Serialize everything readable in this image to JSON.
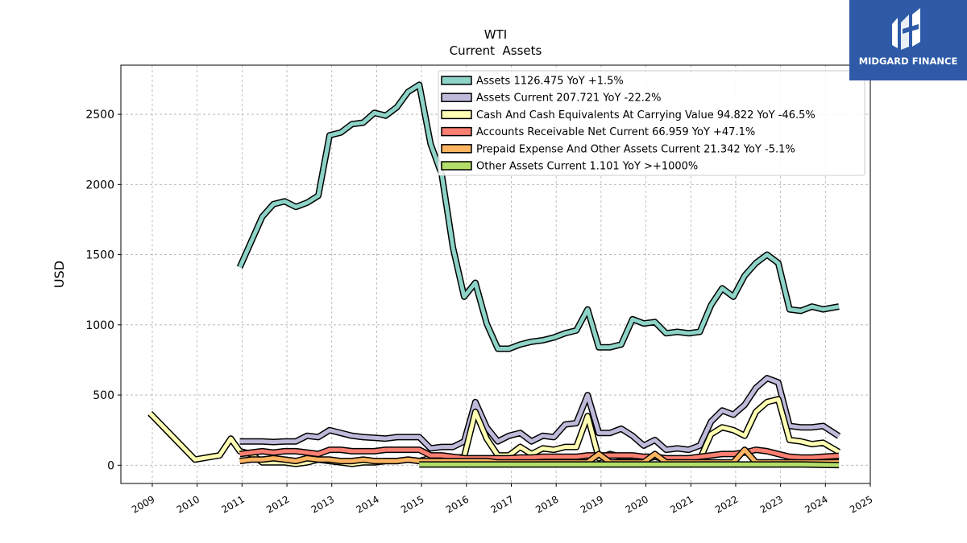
{
  "brand": {
    "name": "MIDGARD FINANCE",
    "bg": "#2e5aa8"
  },
  "chart_data": {
    "type": "line",
    "title": "WTI",
    "subtitle": "Current  Assets",
    "xlabel": "",
    "ylabel": "USD",
    "xlim": [
      2008.3,
      2025.0
    ],
    "ylim": [
      -130,
      2850
    ],
    "x_ticks": [
      "2009",
      "2010",
      "2011",
      "2012",
      "2013",
      "2014",
      "2015",
      "2016",
      "2017",
      "2018",
      "2019",
      "2020",
      "2021",
      "2022",
      "2023",
      "2024",
      "2025"
    ],
    "y_ticks": [
      0,
      500,
      1000,
      1500,
      2000,
      2500
    ],
    "grid": true,
    "legend_position": "top-right",
    "series": [
      {
        "name": "Assets",
        "legend": "Assets  1126.475 YoY +1.5%",
        "color": "#8dd3c7",
        "points": [
          [
            2010.95,
            1410
          ],
          [
            2011.2,
            1590
          ],
          [
            2011.45,
            1770
          ],
          [
            2011.7,
            1860
          ],
          [
            2011.95,
            1880
          ],
          [
            2012.2,
            1840
          ],
          [
            2012.45,
            1870
          ],
          [
            2012.7,
            1920
          ],
          [
            2012.95,
            2350
          ],
          [
            2013.2,
            2370
          ],
          [
            2013.45,
            2430
          ],
          [
            2013.7,
            2440
          ],
          [
            2013.95,
            2510
          ],
          [
            2014.2,
            2490
          ],
          [
            2014.45,
            2550
          ],
          [
            2014.7,
            2660
          ],
          [
            2014.95,
            2710
          ],
          [
            2015.2,
            2290
          ],
          [
            2015.45,
            2070
          ],
          [
            2015.7,
            1550
          ],
          [
            2015.95,
            1200
          ],
          [
            2016.2,
            1300
          ],
          [
            2016.45,
            1010
          ],
          [
            2016.7,
            830
          ],
          [
            2016.95,
            830
          ],
          [
            2017.2,
            860
          ],
          [
            2017.45,
            880
          ],
          [
            2017.7,
            890
          ],
          [
            2017.95,
            910
          ],
          [
            2018.2,
            940
          ],
          [
            2018.45,
            960
          ],
          [
            2018.7,
            1110
          ],
          [
            2018.95,
            840
          ],
          [
            2019.2,
            840
          ],
          [
            2019.45,
            860
          ],
          [
            2019.7,
            1040
          ],
          [
            2019.95,
            1010
          ],
          [
            2020.2,
            1020
          ],
          [
            2020.45,
            940
          ],
          [
            2020.7,
            950
          ],
          [
            2020.95,
            940
          ],
          [
            2021.2,
            950
          ],
          [
            2021.45,
            1140
          ],
          [
            2021.7,
            1260
          ],
          [
            2021.95,
            1200
          ],
          [
            2022.2,
            1350
          ],
          [
            2022.45,
            1440
          ],
          [
            2022.7,
            1500
          ],
          [
            2022.95,
            1440
          ],
          [
            2023.2,
            1110
          ],
          [
            2023.45,
            1100
          ],
          [
            2023.7,
            1130
          ],
          [
            2023.95,
            1110
          ],
          [
            2024.3,
            1130
          ]
        ]
      },
      {
        "name": "Assets Current",
        "legend": "Assets Current  207.721 YoY -22.2%",
        "color": "#bebada",
        "points": [
          [
            2010.95,
            170
          ],
          [
            2011.2,
            170
          ],
          [
            2011.45,
            170
          ],
          [
            2011.7,
            165
          ],
          [
            2011.95,
            170
          ],
          [
            2012.2,
            170
          ],
          [
            2012.45,
            210
          ],
          [
            2012.7,
            200
          ],
          [
            2012.95,
            250
          ],
          [
            2013.2,
            230
          ],
          [
            2013.45,
            210
          ],
          [
            2013.7,
            200
          ],
          [
            2013.95,
            195
          ],
          [
            2014.2,
            190
          ],
          [
            2014.45,
            200
          ],
          [
            2014.7,
            200
          ],
          [
            2014.95,
            200
          ],
          [
            2015.2,
            120
          ],
          [
            2015.45,
            130
          ],
          [
            2015.7,
            130
          ],
          [
            2015.95,
            170
          ],
          [
            2016.2,
            450
          ],
          [
            2016.45,
            270
          ],
          [
            2016.7,
            170
          ],
          [
            2016.95,
            210
          ],
          [
            2017.2,
            230
          ],
          [
            2017.45,
            170
          ],
          [
            2017.7,
            210
          ],
          [
            2017.95,
            200
          ],
          [
            2018.2,
            290
          ],
          [
            2018.45,
            300
          ],
          [
            2018.7,
            500
          ],
          [
            2018.95,
            230
          ],
          [
            2019.2,
            230
          ],
          [
            2019.45,
            260
          ],
          [
            2019.7,
            210
          ],
          [
            2019.95,
            140
          ],
          [
            2020.2,
            180
          ],
          [
            2020.45,
            110
          ],
          [
            2020.7,
            120
          ],
          [
            2020.95,
            110
          ],
          [
            2021.2,
            140
          ],
          [
            2021.45,
            310
          ],
          [
            2021.7,
            390
          ],
          [
            2021.95,
            360
          ],
          [
            2022.2,
            430
          ],
          [
            2022.45,
            550
          ],
          [
            2022.7,
            620
          ],
          [
            2022.95,
            590
          ],
          [
            2023.2,
            280
          ],
          [
            2023.45,
            270
          ],
          [
            2023.7,
            270
          ],
          [
            2023.95,
            280
          ],
          [
            2024.3,
            207.721
          ]
        ]
      },
      {
        "name": "Cash And Cash Equivalents At Carrying Value",
        "legend": "Cash And Cash Equivalents At Carrying Value  94.822 YoY -46.5%",
        "color": "#ffffb3",
        "points": [
          [
            2008.95,
            370
          ],
          [
            2009.95,
            40
          ],
          [
            2010.5,
            70
          ],
          [
            2010.75,
            190
          ],
          [
            2010.95,
            100
          ],
          [
            2011.2,
            80
          ],
          [
            2011.45,
            20
          ],
          [
            2011.7,
            20
          ],
          [
            2011.95,
            20
          ],
          [
            2012.2,
            10
          ],
          [
            2012.45,
            20
          ],
          [
            2012.7,
            40
          ],
          [
            2012.95,
            30
          ],
          [
            2013.2,
            20
          ],
          [
            2013.45,
            10
          ],
          [
            2013.7,
            20
          ],
          [
            2013.95,
            20
          ],
          [
            2014.2,
            30
          ],
          [
            2014.45,
            30
          ],
          [
            2014.7,
            40
          ],
          [
            2014.95,
            30
          ],
          [
            2015.2,
            50
          ],
          [
            2015.45,
            50
          ],
          [
            2015.7,
            50
          ],
          [
            2015.95,
            60
          ],
          [
            2016.2,
            380
          ],
          [
            2016.45,
            190
          ],
          [
            2016.7,
            70
          ],
          [
            2016.95,
            70
          ],
          [
            2017.2,
            130
          ],
          [
            2017.45,
            80
          ],
          [
            2017.7,
            120
          ],
          [
            2017.95,
            110
          ],
          [
            2018.2,
            130
          ],
          [
            2018.45,
            130
          ],
          [
            2018.7,
            350
          ],
          [
            2018.95,
            50
          ],
          [
            2019.2,
            80
          ],
          [
            2019.45,
            60
          ],
          [
            2019.7,
            60
          ],
          [
            2019.95,
            40
          ],
          [
            2020.2,
            60
          ],
          [
            2020.45,
            40
          ],
          [
            2020.7,
            30
          ],
          [
            2020.95,
            40
          ],
          [
            2021.2,
            40
          ],
          [
            2021.45,
            220
          ],
          [
            2021.7,
            270
          ],
          [
            2021.95,
            250
          ],
          [
            2022.2,
            210
          ],
          [
            2022.45,
            380
          ],
          [
            2022.7,
            450
          ],
          [
            2022.95,
            470
          ],
          [
            2023.2,
            180
          ],
          [
            2023.45,
            170
          ],
          [
            2023.7,
            150
          ],
          [
            2023.95,
            160
          ],
          [
            2024.3,
            94.822
          ]
        ]
      },
      {
        "name": "Accounts Receivable Net Current",
        "legend": "Accounts Receivable Net Current  66.959 YoY +47.1%",
        "color": "#fb8072",
        "points": [
          [
            2010.95,
            80
          ],
          [
            2011.2,
            90
          ],
          [
            2011.45,
            100
          ],
          [
            2011.7,
            90
          ],
          [
            2011.95,
            100
          ],
          [
            2012.2,
            100
          ],
          [
            2012.45,
            90
          ],
          [
            2012.7,
            80
          ],
          [
            2012.95,
            110
          ],
          [
            2013.2,
            110
          ],
          [
            2013.45,
            100
          ],
          [
            2013.7,
            100
          ],
          [
            2013.95,
            100
          ],
          [
            2014.2,
            110
          ],
          [
            2014.45,
            110
          ],
          [
            2014.7,
            110
          ],
          [
            2014.95,
            110
          ],
          [
            2015.2,
            70
          ],
          [
            2015.45,
            70
          ],
          [
            2015.7,
            60
          ],
          [
            2015.95,
            50
          ],
          [
            2016.2,
            50
          ],
          [
            2016.45,
            50
          ],
          [
            2016.7,
            50
          ],
          [
            2016.95,
            50
          ],
          [
            2017.2,
            55
          ],
          [
            2017.45,
            55
          ],
          [
            2017.7,
            60
          ],
          [
            2017.95,
            60
          ],
          [
            2018.2,
            60
          ],
          [
            2018.45,
            60
          ],
          [
            2018.7,
            70
          ],
          [
            2018.95,
            70
          ],
          [
            2019.2,
            70
          ],
          [
            2019.45,
            70
          ],
          [
            2019.7,
            70
          ],
          [
            2019.95,
            60
          ],
          [
            2020.2,
            60
          ],
          [
            2020.45,
            50
          ],
          [
            2020.7,
            50
          ],
          [
            2020.95,
            50
          ],
          [
            2021.2,
            60
          ],
          [
            2021.45,
            70
          ],
          [
            2021.7,
            80
          ],
          [
            2021.95,
            80
          ],
          [
            2022.2,
            90
          ],
          [
            2022.45,
            110
          ],
          [
            2022.7,
            100
          ],
          [
            2022.95,
            80
          ],
          [
            2023.2,
            60
          ],
          [
            2023.45,
            55
          ],
          [
            2023.7,
            55
          ],
          [
            2023.95,
            60
          ],
          [
            2024.3,
            66.959
          ]
        ]
      },
      {
        "name": "Prepaid Expense And Other Assets Current",
        "legend": "Prepaid Expense And Other Assets Current  21.342 YoY -5.1%",
        "color": "#fdb462",
        "points": [
          [
            2010.95,
            30
          ],
          [
            2011.2,
            40
          ],
          [
            2011.45,
            40
          ],
          [
            2011.7,
            50
          ],
          [
            2011.95,
            40
          ],
          [
            2012.2,
            30
          ],
          [
            2012.45,
            50
          ],
          [
            2012.7,
            40
          ],
          [
            2012.95,
            40
          ],
          [
            2013.2,
            30
          ],
          [
            2013.45,
            30
          ],
          [
            2013.7,
            40
          ],
          [
            2013.95,
            30
          ],
          [
            2014.2,
            30
          ],
          [
            2014.45,
            30
          ],
          [
            2014.7,
            40
          ],
          [
            2014.95,
            30
          ],
          [
            2015.2,
            30
          ],
          [
            2015.45,
            30
          ],
          [
            2015.7,
            30
          ],
          [
            2015.95,
            30
          ],
          [
            2016.2,
            30
          ],
          [
            2016.45,
            30
          ],
          [
            2016.7,
            20
          ],
          [
            2016.95,
            20
          ],
          [
            2017.2,
            20
          ],
          [
            2017.45,
            20
          ],
          [
            2017.7,
            20
          ],
          [
            2017.95,
            20
          ],
          [
            2018.2,
            20
          ],
          [
            2018.45,
            20
          ],
          [
            2018.7,
            20
          ],
          [
            2018.95,
            80
          ],
          [
            2019.2,
            20
          ],
          [
            2019.45,
            20
          ],
          [
            2019.7,
            20
          ],
          [
            2019.95,
            20
          ],
          [
            2020.2,
            80
          ],
          [
            2020.45,
            20
          ],
          [
            2020.7,
            20
          ],
          [
            2020.95,
            20
          ],
          [
            2021.2,
            20
          ],
          [
            2021.45,
            20
          ],
          [
            2021.7,
            20
          ],
          [
            2021.95,
            20
          ],
          [
            2022.2,
            110
          ],
          [
            2022.45,
            20
          ],
          [
            2022.7,
            20
          ],
          [
            2022.95,
            20
          ],
          [
            2023.2,
            20
          ],
          [
            2023.45,
            20
          ],
          [
            2023.7,
            20
          ],
          [
            2023.95,
            20
          ],
          [
            2024.3,
            21.342
          ]
        ]
      },
      {
        "name": "Other Assets Current",
        "legend": "Other Assets Current  1.101 YoY >+1000%",
        "color": "#b3de69",
        "points": [
          [
            2014.95,
            5
          ],
          [
            2015.5,
            5
          ],
          [
            2016.0,
            5
          ],
          [
            2016.5,
            5
          ],
          [
            2017.0,
            5
          ],
          [
            2017.5,
            5
          ],
          [
            2018.0,
            5
          ],
          [
            2018.5,
            5
          ],
          [
            2019.0,
            5
          ],
          [
            2019.5,
            5
          ],
          [
            2020.0,
            5
          ],
          [
            2020.5,
            5
          ],
          [
            2021.0,
            5
          ],
          [
            2021.5,
            5
          ],
          [
            2022.0,
            5
          ],
          [
            2022.5,
            5
          ],
          [
            2023.0,
            5
          ],
          [
            2023.5,
            5
          ],
          [
            2024.3,
            1.101
          ]
        ]
      }
    ]
  }
}
